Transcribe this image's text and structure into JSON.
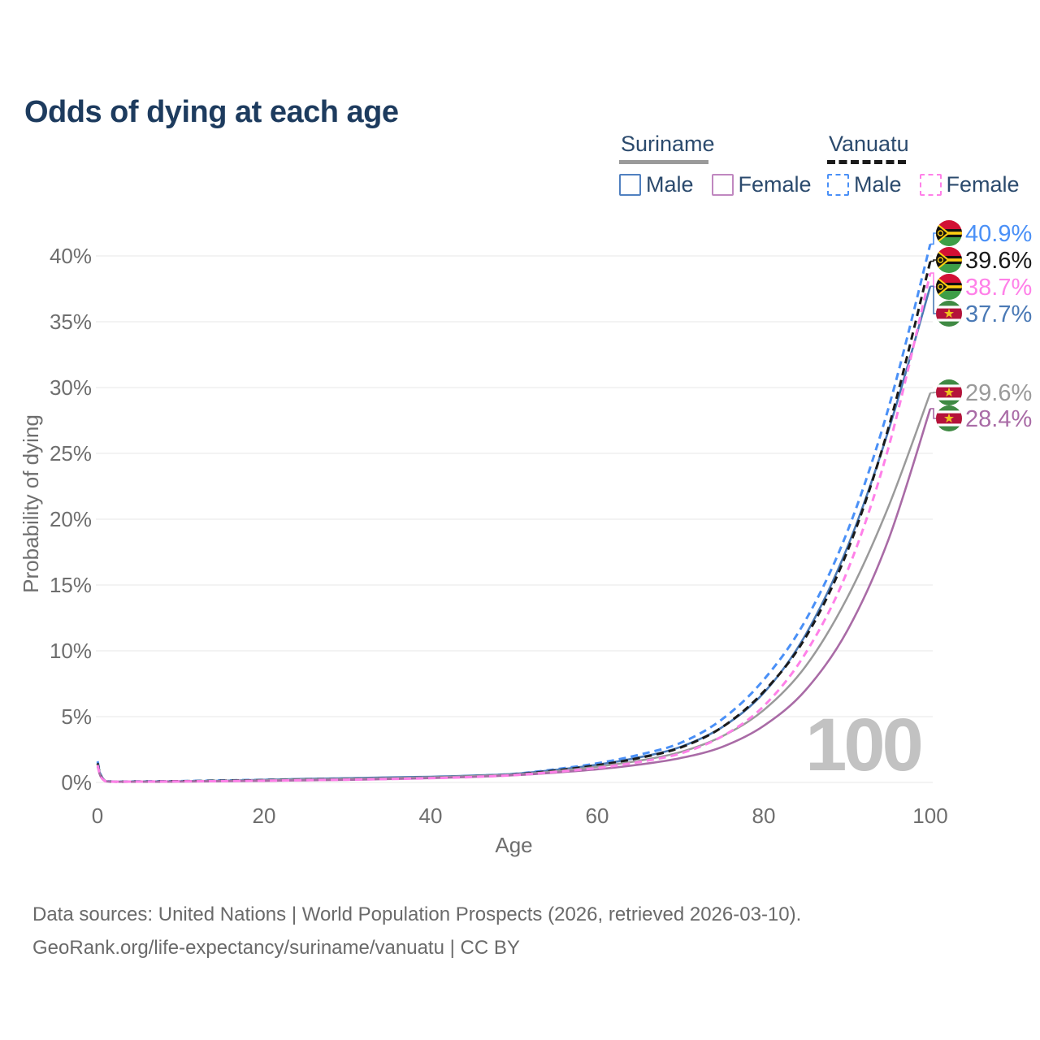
{
  "title": "Odds of dying at each age",
  "colors": {
    "title_text": "#1d3b5e",
    "legend_text": "#2b4a6d",
    "axis_text": "#6e6e6e",
    "grid": "#ececec",
    "watermark": "#c2c2c2",
    "footer_text": "#6a6a6a",
    "background": "#ffffff",
    "suriname_male": "#4a79b5",
    "suriname_female": "#a96ba6",
    "suriname_both": "#9a9a9a",
    "vanuatu_male": "#4a90f7",
    "vanuatu_female": "#ff80e8",
    "vanuatu_both": "#1a1a1a"
  },
  "legend": {
    "groups": [
      {
        "name": "Suriname",
        "line_style": "solid",
        "line_color": "#9a9a9a",
        "items": [
          {
            "label": "Male",
            "color": "#5080c0",
            "dashed": false
          },
          {
            "label": "Female",
            "color": "#c088c0",
            "dashed": false
          }
        ]
      },
      {
        "name": "Vanuatu",
        "line_style": "dashed",
        "line_color": "#1a1a1a",
        "items": [
          {
            "label": "Male",
            "color": "#4a90f7",
            "dashed": true
          },
          {
            "label": "Female",
            "color": "#ff80e8",
            "dashed": true
          }
        ]
      }
    ]
  },
  "chart_data": {
    "type": "line",
    "title": "Odds of dying at each age",
    "xlabel": "Age",
    "ylabel": "Probability of dying",
    "unit": "percent",
    "xlim": [
      0,
      100
    ],
    "ylim": [
      0,
      43
    ],
    "x_ticks": [
      0,
      20,
      40,
      60,
      80,
      100
    ],
    "y_ticks": [
      0,
      5,
      10,
      15,
      20,
      25,
      30,
      35,
      40
    ],
    "y_tick_labels": [
      "0%",
      "5%",
      "10%",
      "15%",
      "20%",
      "25%",
      "30%",
      "35%",
      "40%"
    ],
    "grid": true,
    "legend_position": "top-right",
    "ages": [
      0,
      1,
      5,
      10,
      15,
      20,
      25,
      30,
      35,
      40,
      45,
      50,
      55,
      60,
      65,
      70,
      75,
      80,
      85,
      90,
      95,
      100
    ],
    "series": [
      {
        "name": "Vanuatu — Male",
        "country": "Vanuatu",
        "sex": "male",
        "flag": "vanuatu",
        "color": "#4a90f7",
        "dashed": true,
        "end_label": "40.9%",
        "values": [
          1.6,
          0.1,
          0.08,
          0.1,
          0.15,
          0.2,
          0.25,
          0.3,
          0.35,
          0.4,
          0.5,
          0.65,
          1.0,
          1.45,
          2.1,
          3.0,
          4.8,
          7.8,
          12.3,
          19.0,
          28.5,
          40.9
        ]
      },
      {
        "name": "Suriname — Male",
        "country": "Suriname",
        "sex": "male",
        "flag": "suriname",
        "color": "#4a79b5",
        "dashed": false,
        "end_label": "37.7%",
        "values": [
          1.5,
          0.1,
          0.07,
          0.09,
          0.13,
          0.2,
          0.27,
          0.32,
          0.38,
          0.43,
          0.52,
          0.65,
          0.95,
          1.35,
          1.9,
          2.7,
          4.2,
          6.8,
          11.2,
          17.8,
          26.8,
          37.7
        ]
      },
      {
        "name": "Vanuatu — Both sexes",
        "country": "Vanuatu",
        "sex": "both",
        "flag": "vanuatu",
        "color": "#1a1a1a",
        "dashed": true,
        "end_label": "39.6%",
        "values": [
          1.45,
          0.09,
          0.07,
          0.09,
          0.13,
          0.17,
          0.22,
          0.26,
          0.31,
          0.37,
          0.46,
          0.6,
          0.9,
          1.3,
          1.85,
          2.65,
          4.2,
          6.9,
          11.0,
          17.5,
          27.0,
          39.6
        ]
      },
      {
        "name": "Suriname — Both sexes",
        "country": "Suriname",
        "sex": "both",
        "flag": "suriname",
        "color": "#9a9a9a",
        "dashed": false,
        "end_label": "29.6%",
        "values": [
          1.35,
          0.09,
          0.06,
          0.08,
          0.11,
          0.16,
          0.22,
          0.27,
          0.33,
          0.39,
          0.48,
          0.6,
          0.85,
          1.2,
          1.65,
          2.3,
          3.5,
          5.5,
          8.8,
          14.0,
          21.0,
          29.6
        ]
      },
      {
        "name": "Suriname — Female",
        "country": "Suriname",
        "sex": "female",
        "flag": "suriname",
        "color": "#a96ba6",
        "dashed": false,
        "end_label": "28.4%",
        "values": [
          1.2,
          0.08,
          0.05,
          0.07,
          0.09,
          0.12,
          0.16,
          0.2,
          0.26,
          0.33,
          0.42,
          0.55,
          0.75,
          1.0,
          1.35,
          1.85,
          2.7,
          4.3,
          7.0,
          11.5,
          18.5,
          28.4
        ]
      },
      {
        "name": "Vanuatu — Female",
        "country": "Vanuatu",
        "sex": "female",
        "flag": "vanuatu",
        "color": "#ff80e8",
        "dashed": true,
        "end_label": "38.7%",
        "values": [
          1.3,
          0.08,
          0.06,
          0.08,
          0.1,
          0.13,
          0.17,
          0.21,
          0.26,
          0.32,
          0.41,
          0.55,
          0.8,
          1.1,
          1.55,
          2.2,
          3.5,
          5.8,
          9.8,
          16.0,
          25.5,
          38.7
        ]
      }
    ]
  },
  "annotations": {
    "hovered_age_label": "100"
  },
  "footer": {
    "line1": "Data sources: United Nations | World Population Prospects (2026, retrieved 2026-03-10).",
    "line2": "GeoRank.org/life-expectancy/suriname/vanuatu | CC BY"
  }
}
